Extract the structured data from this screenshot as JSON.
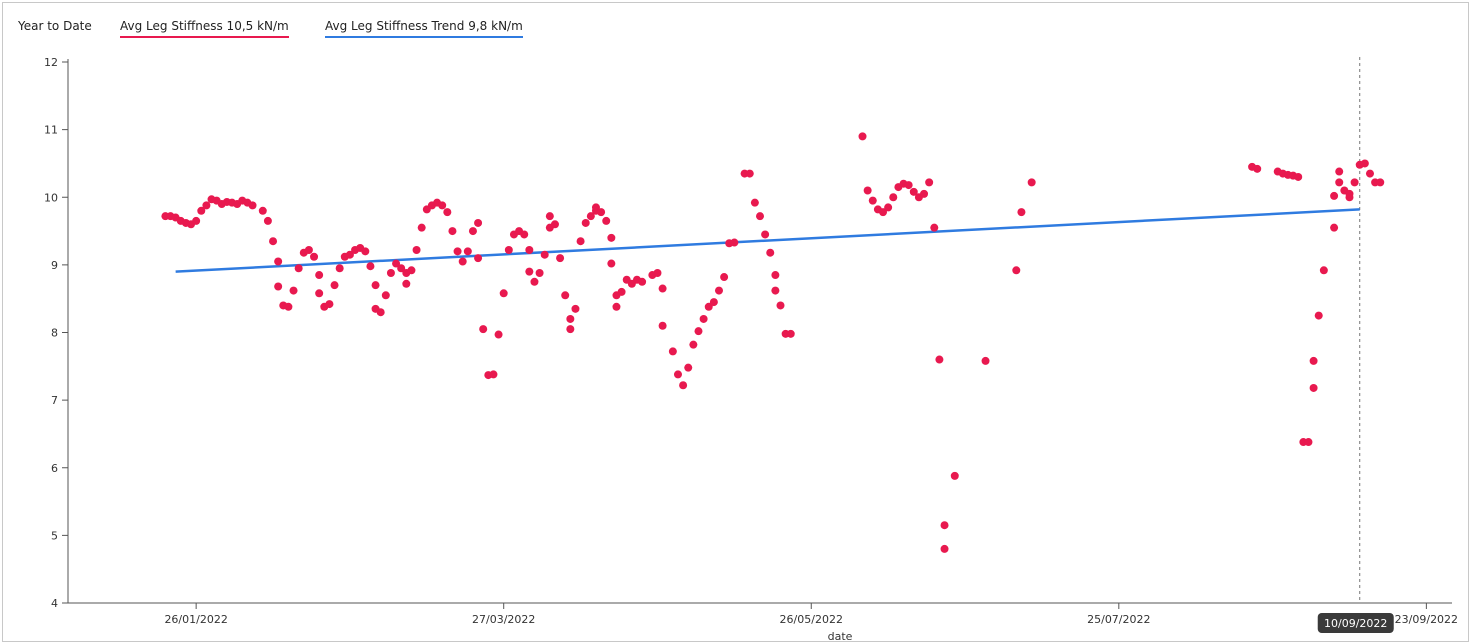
{
  "header": {
    "period": "Year to Date",
    "legend": [
      {
        "label": "Avg Leg Stiffness  10,5 kN/m",
        "color": "#e8194f"
      },
      {
        "label": "Avg Leg Stiffness Trend  9,8 kN/m",
        "color": "#2f7be0"
      }
    ]
  },
  "chart_data": {
    "type": "scatter",
    "xlabel": "date",
    "ylabel": "",
    "x_ticks": [
      "26/01/2022",
      "27/03/2022",
      "26/05/2022",
      "25/07/2022",
      "23/09/2022"
    ],
    "x_tick_labels": [
      "26/01/2022",
      "27/03/2022",
      "26/05/2022",
      "25/07/2022",
      "23/09/2022"
    ],
    "xlim": [
      "2022-01-01",
      "2022-09-28"
    ],
    "ylim": [
      4,
      12
    ],
    "y_ticks": [
      4,
      5,
      6,
      7,
      8,
      9,
      10,
      11,
      12
    ],
    "grid": false,
    "crosshair": {
      "date": "2022-09-10",
      "label": "10/09/2022"
    },
    "series": [
      {
        "type": "scatter",
        "color": "#e8194f",
        "points": [
          [
            "2022-01-20",
            9.72
          ],
          [
            "2022-01-21",
            9.72
          ],
          [
            "2022-01-22",
            9.7
          ],
          [
            "2022-01-23",
            9.65
          ],
          [
            "2022-01-24",
            9.62
          ],
          [
            "2022-01-25",
            9.6
          ],
          [
            "2022-01-26",
            9.65
          ],
          [
            "2022-01-27",
            9.8
          ],
          [
            "2022-01-28",
            9.88
          ],
          [
            "2022-01-29",
            9.97
          ],
          [
            "2022-01-30",
            9.95
          ],
          [
            "2022-01-31",
            9.9
          ],
          [
            "2022-02-01",
            9.93
          ],
          [
            "2022-02-02",
            9.92
          ],
          [
            "2022-02-03",
            9.9
          ],
          [
            "2022-02-04",
            9.95
          ],
          [
            "2022-02-05",
            9.92
          ],
          [
            "2022-02-06",
            9.88
          ],
          [
            "2022-02-08",
            9.8
          ],
          [
            "2022-02-09",
            9.65
          ],
          [
            "2022-02-10",
            9.35
          ],
          [
            "2022-02-11",
            9.05
          ],
          [
            "2022-02-11",
            8.68
          ],
          [
            "2022-02-12",
            8.4
          ],
          [
            "2022-02-13",
            8.38
          ],
          [
            "2022-02-14",
            8.62
          ],
          [
            "2022-02-15",
            8.95
          ],
          [
            "2022-02-16",
            9.18
          ],
          [
            "2022-02-17",
            9.22
          ],
          [
            "2022-02-18",
            9.12
          ],
          [
            "2022-02-19",
            8.85
          ],
          [
            "2022-02-19",
            8.58
          ],
          [
            "2022-02-20",
            8.38
          ],
          [
            "2022-02-21",
            8.42
          ],
          [
            "2022-02-22",
            8.7
          ],
          [
            "2022-02-23",
            8.95
          ],
          [
            "2022-02-24",
            9.12
          ],
          [
            "2022-02-25",
            9.15
          ],
          [
            "2022-02-26",
            9.22
          ],
          [
            "2022-02-27",
            9.25
          ],
          [
            "2022-02-28",
            9.2
          ],
          [
            "2022-03-01",
            8.98
          ],
          [
            "2022-03-02",
            8.7
          ],
          [
            "2022-03-02",
            8.35
          ],
          [
            "2022-03-03",
            8.3
          ],
          [
            "2022-03-04",
            8.55
          ],
          [
            "2022-03-05",
            8.88
          ],
          [
            "2022-03-06",
            9.02
          ],
          [
            "2022-03-07",
            8.95
          ],
          [
            "2022-03-08",
            8.88
          ],
          [
            "2022-03-08",
            8.72
          ],
          [
            "2022-03-09",
            8.92
          ],
          [
            "2022-03-10",
            9.22
          ],
          [
            "2022-03-11",
            9.55
          ],
          [
            "2022-03-12",
            9.82
          ],
          [
            "2022-03-13",
            9.88
          ],
          [
            "2022-03-14",
            9.92
          ],
          [
            "2022-03-15",
            9.88
          ],
          [
            "2022-03-16",
            9.78
          ],
          [
            "2022-03-17",
            9.5
          ],
          [
            "2022-03-18",
            9.2
          ],
          [
            "2022-03-19",
            9.05
          ],
          [
            "2022-03-20",
            9.2
          ],
          [
            "2022-03-21",
            9.5
          ],
          [
            "2022-03-22",
            9.62
          ],
          [
            "2022-03-22",
            9.1
          ],
          [
            "2022-03-23",
            8.05
          ],
          [
            "2022-03-24",
            7.37
          ],
          [
            "2022-03-25",
            7.38
          ],
          [
            "2022-03-26",
            7.97
          ],
          [
            "2022-03-27",
            8.58
          ],
          [
            "2022-03-28",
            9.22
          ],
          [
            "2022-03-29",
            9.45
          ],
          [
            "2022-03-30",
            9.5
          ],
          [
            "2022-03-31",
            9.45
          ],
          [
            "2022-04-01",
            9.22
          ],
          [
            "2022-04-01",
            8.9
          ],
          [
            "2022-04-02",
            8.75
          ],
          [
            "2022-04-03",
            8.88
          ],
          [
            "2022-04-04",
            9.15
          ],
          [
            "2022-04-05",
            9.72
          ],
          [
            "2022-04-05",
            9.55
          ],
          [
            "2022-04-06",
            9.6
          ],
          [
            "2022-04-07",
            9.1
          ],
          [
            "2022-04-08",
            8.55
          ],
          [
            "2022-04-09",
            8.2
          ],
          [
            "2022-04-09",
            8.05
          ],
          [
            "2022-04-10",
            8.35
          ],
          [
            "2022-04-11",
            9.35
          ],
          [
            "2022-04-12",
            9.62
          ],
          [
            "2022-04-13",
            9.72
          ],
          [
            "2022-04-14",
            9.8
          ],
          [
            "2022-04-14",
            9.85
          ],
          [
            "2022-04-15",
            9.78
          ],
          [
            "2022-04-16",
            9.65
          ],
          [
            "2022-04-17",
            9.4
          ],
          [
            "2022-04-17",
            9.02
          ],
          [
            "2022-04-18",
            8.55
          ],
          [
            "2022-04-18",
            8.38
          ],
          [
            "2022-04-19",
            8.6
          ],
          [
            "2022-04-20",
            8.78
          ],
          [
            "2022-04-21",
            8.72
          ],
          [
            "2022-04-22",
            8.78
          ],
          [
            "2022-04-23",
            8.75
          ],
          [
            "2022-04-25",
            8.85
          ],
          [
            "2022-04-26",
            8.88
          ],
          [
            "2022-04-27",
            8.65
          ],
          [
            "2022-04-27",
            8.1
          ],
          [
            "2022-04-29",
            7.72
          ],
          [
            "2022-04-30",
            7.38
          ],
          [
            "2022-05-01",
            7.22
          ],
          [
            "2022-05-02",
            7.48
          ],
          [
            "2022-05-03",
            7.82
          ],
          [
            "2022-05-04",
            8.02
          ],
          [
            "2022-05-05",
            8.2
          ],
          [
            "2022-05-06",
            8.38
          ],
          [
            "2022-05-07",
            8.45
          ],
          [
            "2022-05-08",
            8.62
          ],
          [
            "2022-05-09",
            8.82
          ],
          [
            "2022-05-10",
            9.32
          ],
          [
            "2022-05-11",
            9.33
          ],
          [
            "2022-05-13",
            10.35
          ],
          [
            "2022-05-14",
            10.35
          ],
          [
            "2022-05-15",
            9.92
          ],
          [
            "2022-05-16",
            9.72
          ],
          [
            "2022-05-17",
            9.45
          ],
          [
            "2022-05-18",
            9.18
          ],
          [
            "2022-05-19",
            8.85
          ],
          [
            "2022-05-19",
            8.62
          ],
          [
            "2022-05-20",
            8.4
          ],
          [
            "2022-05-21",
            7.98
          ],
          [
            "2022-05-22",
            7.98
          ],
          [
            "2022-06-05",
            10.9
          ],
          [
            "2022-06-06",
            10.1
          ],
          [
            "2022-06-07",
            9.95
          ],
          [
            "2022-06-08",
            9.82
          ],
          [
            "2022-06-09",
            9.78
          ],
          [
            "2022-06-10",
            9.85
          ],
          [
            "2022-06-11",
            10.0
          ],
          [
            "2022-06-12",
            10.15
          ],
          [
            "2022-06-13",
            10.2
          ],
          [
            "2022-06-14",
            10.18
          ],
          [
            "2022-06-15",
            10.08
          ],
          [
            "2022-06-16",
            10.0
          ],
          [
            "2022-06-17",
            10.05
          ],
          [
            "2022-06-18",
            10.22
          ],
          [
            "2022-06-19",
            9.55
          ],
          [
            "2022-06-20",
            7.6
          ],
          [
            "2022-06-21",
            5.15
          ],
          [
            "2022-06-21",
            4.8
          ],
          [
            "2022-06-23",
            5.88
          ],
          [
            "2022-06-29",
            7.58
          ],
          [
            "2022-07-05",
            8.92
          ],
          [
            "2022-07-06",
            9.78
          ],
          [
            "2022-07-08",
            10.22
          ],
          [
            "2022-08-20",
            10.45
          ],
          [
            "2022-08-21",
            10.42
          ],
          [
            "2022-08-25",
            10.38
          ],
          [
            "2022-08-26",
            10.35
          ],
          [
            "2022-08-27",
            10.33
          ],
          [
            "2022-08-28",
            10.32
          ],
          [
            "2022-08-29",
            10.3
          ],
          [
            "2022-08-30",
            6.38
          ],
          [
            "2022-08-31",
            6.38
          ],
          [
            "2022-09-01",
            7.58
          ],
          [
            "2022-09-01",
            7.18
          ],
          [
            "2022-09-02",
            8.25
          ],
          [
            "2022-09-03",
            8.92
          ],
          [
            "2022-09-05",
            9.55
          ],
          [
            "2022-09-05",
            10.02
          ],
          [
            "2022-09-06",
            10.38
          ],
          [
            "2022-09-06",
            10.22
          ],
          [
            "2022-09-07",
            10.1
          ],
          [
            "2022-09-08",
            10.0
          ],
          [
            "2022-09-08",
            10.05
          ],
          [
            "2022-09-09",
            10.22
          ],
          [
            "2022-09-10",
            10.48
          ],
          [
            "2022-09-11",
            10.5
          ],
          [
            "2022-09-12",
            10.35
          ],
          [
            "2022-09-13",
            10.22
          ],
          [
            "2022-09-14",
            10.22
          ]
        ]
      },
      {
        "type": "line",
        "color": "#2f7be0",
        "points": [
          [
            "2022-01-22",
            8.9
          ],
          [
            "2022-09-10",
            9.82
          ]
        ]
      }
    ]
  }
}
